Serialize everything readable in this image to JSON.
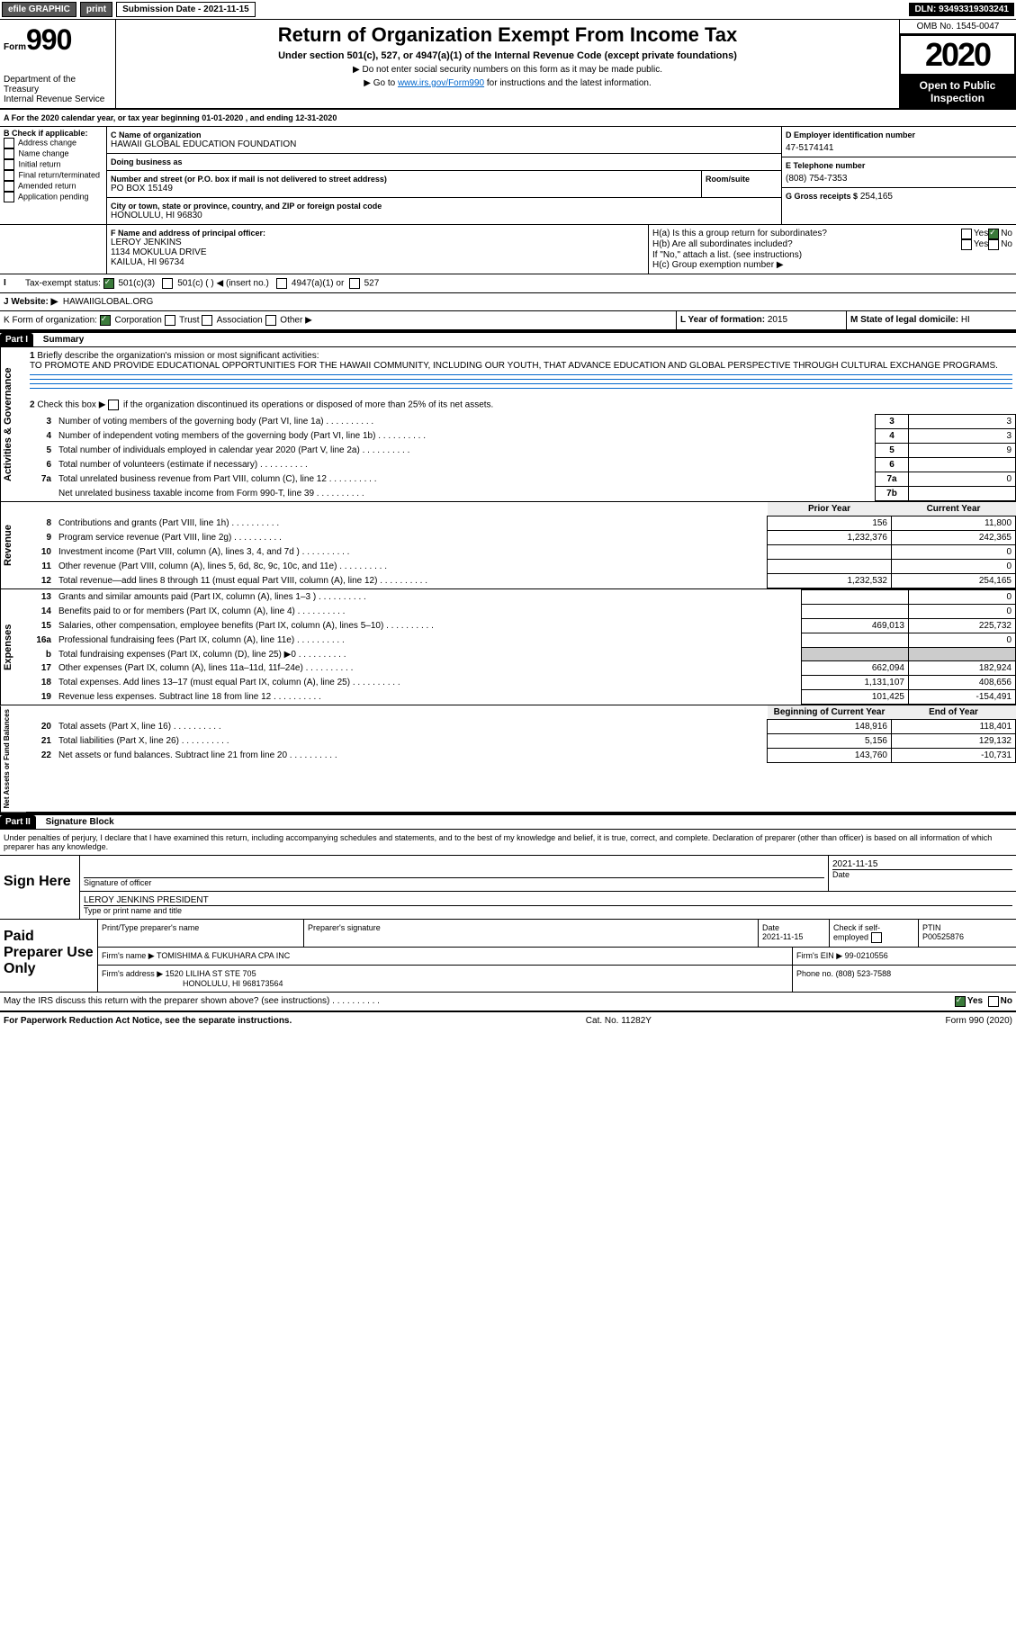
{
  "topbar": {
    "efile": "efile GRAPHIC",
    "print": "print",
    "subdate": "Submission Date - 2021-11-15",
    "dln": "DLN: 93493319303241"
  },
  "header": {
    "form": "Form",
    "num": "990",
    "dept": "Department of the Treasury\nInternal Revenue Service",
    "title": "Return of Organization Exempt From Income Tax",
    "sub": "Under section 501(c), 527, or 4947(a)(1) of the Internal Revenue Code (except private foundations)",
    "l1": "▶ Do not enter social security numbers on this form as it may be made public.",
    "l2a": "▶ Go to ",
    "l2link": "www.irs.gov/Form990",
    "l2b": " for instructions and the latest information.",
    "omb": "OMB No. 1545-0047",
    "year": "2020",
    "open": "Open to Public Inspection"
  },
  "line_a": "A For the 2020 calendar year, or tax year beginning 01-01-2020   , and ending 12-31-2020",
  "box_b": {
    "label": "B Check if applicable:",
    "items": [
      "Address change",
      "Name change",
      "Initial return",
      "Final return/terminated",
      "Amended return",
      "Application pending"
    ]
  },
  "box_c": {
    "label": "C Name of organization",
    "name": "HAWAII GLOBAL EDUCATION FOUNDATION",
    "dba_l": "Doing business as",
    "street_l": "Number and street (or P.O. box if mail is not delivered to street address)",
    "room_l": "Room/suite",
    "street": "PO BOX 15149",
    "city_l": "City or town, state or province, country, and ZIP or foreign postal code",
    "city": "HONOLULU, HI  96830"
  },
  "box_d": {
    "label": "D Employer identification number",
    "val": "47-5174141"
  },
  "box_e": {
    "label": "E Telephone number",
    "val": "(808) 754-7353"
  },
  "box_g": {
    "label": "G Gross receipts $",
    "val": "254,165"
  },
  "box_f": {
    "label": "F  Name and address of principal officer:",
    "name": "LEROY JENKINS",
    "addr1": "1134 MOKULUA DRIVE",
    "addr2": "KAILUA, HI  96734"
  },
  "box_h": {
    "ha": "H(a)  Is this a group return for subordinates?",
    "hb": "H(b)  Are all subordinates included?",
    "note": "If \"No,\" attach a list. (see instructions)",
    "hc": "H(c)  Group exemption number ▶",
    "yes": "Yes",
    "no": "No"
  },
  "tax_status": {
    "label": "Tax-exempt status:",
    "a": "501(c)(3)",
    "b": "501(c) (  ) ◀ (insert no.)",
    "c": "4947(a)(1) or",
    "d": "527"
  },
  "website": {
    "label": "J   Website: ▶",
    "val": "HAWAIIGLOBAL.ORG"
  },
  "korg": {
    "label": "K Form of organization:",
    "a": "Corporation",
    "b": "Trust",
    "c": "Association",
    "d": "Other ▶"
  },
  "l": {
    "label": "L Year of formation:",
    "val": "2015"
  },
  "m": {
    "label": "M State of legal domicile:",
    "val": "HI"
  },
  "part1": {
    "title": "Part I",
    "name": "Summary"
  },
  "q1": {
    "num": "1",
    "text": "Briefly describe the organization's mission or most significant activities:",
    "val": "TO PROMOTE AND PROVIDE EDUCATIONAL OPPORTUNITIES FOR THE HAWAII COMMUNITY, INCLUDING OUR YOUTH, THAT ADVANCE EDUCATION AND GLOBAL PERSPECTIVE THROUGH CULTURAL EXCHANGE PROGRAMS."
  },
  "q2": {
    "num": "2",
    "text": "Check this box ▶",
    "text2": "if the organization discontinued its operations or disposed of more than 25% of its net assets."
  },
  "gov_lines": [
    {
      "n": "3",
      "t": "Number of voting members of the governing body (Part VI, line 1a)",
      "box": "3",
      "v": "3"
    },
    {
      "n": "4",
      "t": "Number of independent voting members of the governing body (Part VI, line 1b)",
      "box": "4",
      "v": "3"
    },
    {
      "n": "5",
      "t": "Total number of individuals employed in calendar year 2020 (Part V, line 2a)",
      "box": "5",
      "v": "9"
    },
    {
      "n": "6",
      "t": "Total number of volunteers (estimate if necessary)",
      "box": "6",
      "v": ""
    },
    {
      "n": "7a",
      "t": "Total unrelated business revenue from Part VIII, column (C), line 12",
      "box": "7a",
      "v": "0"
    },
    {
      "n": "",
      "t": "Net unrelated business taxable income from Form 990-T, line 39",
      "box": "7b",
      "v": ""
    }
  ],
  "rev_head": {
    "py": "Prior Year",
    "cy": "Current Year"
  },
  "rev_lines": [
    {
      "n": "8",
      "t": "Contributions and grants (Part VIII, line 1h)",
      "py": "156",
      "cy": "11,800"
    },
    {
      "n": "9",
      "t": "Program service revenue (Part VIII, line 2g)",
      "py": "1,232,376",
      "cy": "242,365"
    },
    {
      "n": "10",
      "t": "Investment income (Part VIII, column (A), lines 3, 4, and 7d )",
      "py": "",
      "cy": "0"
    },
    {
      "n": "11",
      "t": "Other revenue (Part VIII, column (A), lines 5, 6d, 8c, 9c, 10c, and 11e)",
      "py": "",
      "cy": "0"
    },
    {
      "n": "12",
      "t": "Total revenue—add lines 8 through 11 (must equal Part VIII, column (A), line 12)",
      "py": "1,232,532",
      "cy": "254,165"
    }
  ],
  "exp_lines": [
    {
      "n": "13",
      "t": "Grants and similar amounts paid (Part IX, column (A), lines 1–3 )",
      "py": "",
      "cy": "0"
    },
    {
      "n": "14",
      "t": "Benefits paid to or for members (Part IX, column (A), line 4)",
      "py": "",
      "cy": "0"
    },
    {
      "n": "15",
      "t": "Salaries, other compensation, employee benefits (Part IX, column (A), lines 5–10)",
      "py": "469,013",
      "cy": "225,732"
    },
    {
      "n": "16a",
      "t": "Professional fundraising fees (Part IX, column (A), line 11e)",
      "py": "",
      "cy": "0"
    },
    {
      "n": "b",
      "t": "Total fundraising expenses (Part IX, column (D), line 25) ▶0",
      "py": "GREY",
      "cy": "GREY"
    },
    {
      "n": "17",
      "t": "Other expenses (Part IX, column (A), lines 11a–11d, 11f–24e)",
      "py": "662,094",
      "cy": "182,924"
    },
    {
      "n": "18",
      "t": "Total expenses. Add lines 13–17 (must equal Part IX, column (A), line 25)",
      "py": "1,131,107",
      "cy": "408,656"
    },
    {
      "n": "19",
      "t": "Revenue less expenses. Subtract line 18 from line 12",
      "py": "101,425",
      "cy": "-154,491"
    }
  ],
  "bal_head": {
    "b": "Beginning of Current Year",
    "e": "End of Year"
  },
  "bal_lines": [
    {
      "n": "20",
      "t": "Total assets (Part X, line 16)",
      "py": "148,916",
      "cy": "118,401"
    },
    {
      "n": "21",
      "t": "Total liabilities (Part X, line 26)",
      "py": "5,156",
      "cy": "129,132"
    },
    {
      "n": "22",
      "t": "Net assets or fund balances. Subtract line 21 from line 20",
      "py": "143,760",
      "cy": "-10,731"
    }
  ],
  "side": {
    "gov": "Activities & Governance",
    "rev": "Revenue",
    "exp": "Expenses",
    "bal": "Net Assets or Fund Balances"
  },
  "part2": {
    "title": "Part II",
    "name": "Signature Block",
    "decl": "Under penalties of perjury, I declare that I have examined this return, including accompanying schedules and statements, and to the best of my knowledge and belief, it is true, correct, and complete. Declaration of preparer (other than officer) is based on all information of which preparer has any knowledge."
  },
  "sign": {
    "here": "Sign Here",
    "sig_l": "Signature of officer",
    "date_l": "Date",
    "date": "2021-11-15",
    "name": "LEROY JENKINS  PRESIDENT",
    "name_l": "Type or print name and title"
  },
  "prep": {
    "here": "Paid Preparer Use Only",
    "c1": "Print/Type preparer's name",
    "c2": "Preparer's signature",
    "c3": "Date",
    "c3v": "2021-11-15",
    "c4": "Check        if self-employed",
    "c5": "PTIN",
    "c5v": "P00525876",
    "firm_l": "Firm's name   ▶",
    "firm": "TOMISHIMA & FUKUHARA CPA INC",
    "ein_l": "Firm's EIN ▶",
    "ein": "99-0210556",
    "addr_l": "Firm's address ▶",
    "addr": "1520 LILIHA ST STE 705",
    "addr2": "HONOLULU, HI  968173564",
    "ph_l": "Phone no.",
    "ph": "(808) 523-7588"
  },
  "may": {
    "text": "May the IRS discuss this return with the preparer shown above? (see instructions)",
    "yes": "Yes",
    "no": "No"
  },
  "footer": {
    "l": "For Paperwork Reduction Act Notice, see the separate instructions.",
    "m": "Cat. No. 11282Y",
    "r": "Form 990 (2020)"
  }
}
